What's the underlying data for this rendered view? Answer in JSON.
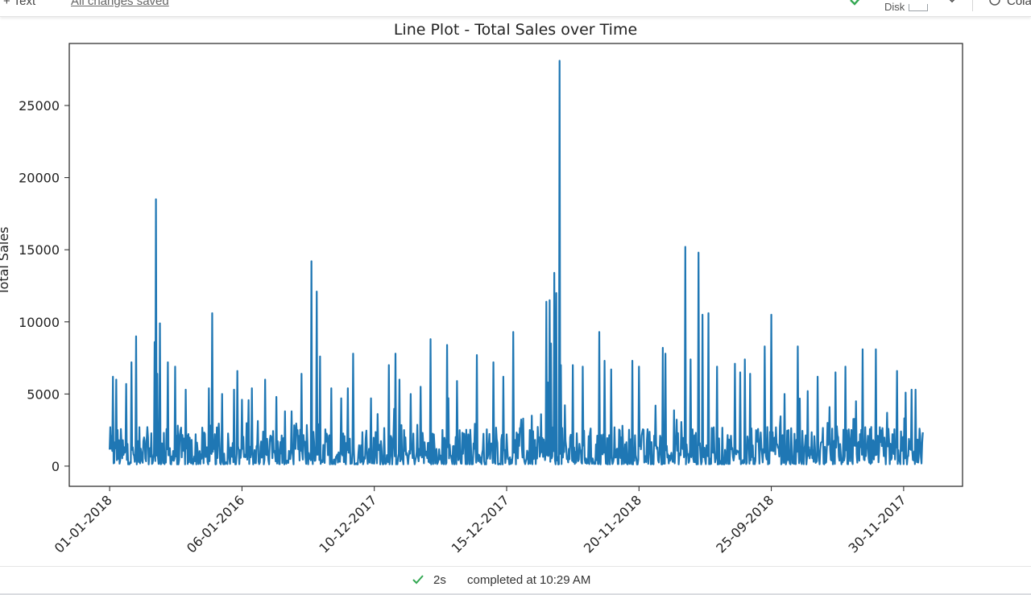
{
  "toolbar": {
    "text_button": "+ Text",
    "save_status": "All changes saved",
    "disk_label": "Disk",
    "colab_label": "Colab"
  },
  "status": {
    "duration": "2s",
    "message": "completed at 10:29 AM"
  },
  "colors": {
    "line": "#1f77b4",
    "check": "#34a853"
  },
  "icons": [
    "check-icon",
    "chevron-down-icon",
    "colab-icon",
    "status-check-icon"
  ],
  "chart_data": {
    "type": "line",
    "title": "Line Plot - Total Sales over Time",
    "xlabel": "",
    "ylabel": "Total Sales",
    "ylim": [
      -1400,
      29300
    ],
    "yticks": [
      0,
      5000,
      10000,
      15000,
      20000,
      25000
    ],
    "x_tick_labels": [
      "01-01-2018",
      "06-01-2016",
      "10-12-2017",
      "15-12-2017",
      "20-11-2018",
      "25-09-2018",
      "30-11-2017"
    ],
    "x_tick_positions": [
      0,
      200,
      400,
      600,
      800,
      1000,
      1200
    ],
    "x_range": [
      -61,
      1289
    ],
    "grid": false,
    "legend": "none",
    "n_points": 1230,
    "peaks": [
      [
        5,
        6200
      ],
      [
        10,
        6000
      ],
      [
        25,
        5700
      ],
      [
        33,
        7200
      ],
      [
        40,
        9000
      ],
      [
        68,
        8600
      ],
      [
        70,
        18500
      ],
      [
        72,
        6400
      ],
      [
        76,
        9900
      ],
      [
        88,
        7200
      ],
      [
        99,
        6900
      ],
      [
        115,
        5300
      ],
      [
        150,
        5400
      ],
      [
        155,
        10600
      ],
      [
        170,
        5000
      ],
      [
        188,
        5300
      ],
      [
        193,
        6600
      ],
      [
        200,
        4600
      ],
      [
        215,
        5400
      ],
      [
        235,
        6000
      ],
      [
        252,
        4800
      ],
      [
        265,
        3800
      ],
      [
        275,
        3800
      ],
      [
        290,
        6400
      ],
      [
        305,
        14200
      ],
      [
        313,
        12100
      ],
      [
        318,
        7600
      ],
      [
        335,
        5400
      ],
      [
        350,
        4700
      ],
      [
        360,
        5400
      ],
      [
        368,
        7800
      ],
      [
        395,
        4700
      ],
      [
        422,
        7000
      ],
      [
        432,
        7800
      ],
      [
        438,
        6000
      ],
      [
        455,
        5000
      ],
      [
        470,
        5500
      ],
      [
        485,
        8800
      ],
      [
        510,
        8400
      ],
      [
        525,
        5900
      ],
      [
        555,
        7700
      ],
      [
        580,
        7200
      ],
      [
        595,
        6200
      ],
      [
        610,
        9300
      ],
      [
        625,
        3300
      ],
      [
        638,
        3500
      ],
      [
        652,
        3600
      ],
      [
        660,
        11400
      ],
      [
        662,
        5800
      ],
      [
        665,
        11500
      ],
      [
        667,
        8500
      ],
      [
        672,
        13400
      ],
      [
        675,
        12000
      ],
      [
        680,
        28100
      ],
      [
        682,
        7000
      ],
      [
        700,
        7000
      ],
      [
        715,
        6900
      ],
      [
        740,
        9300
      ],
      [
        748,
        7300
      ],
      [
        758,
        6700
      ],
      [
        775,
        2800
      ],
      [
        790,
        7300
      ],
      [
        800,
        6900
      ],
      [
        825,
        4200
      ],
      [
        836,
        8200
      ],
      [
        840,
        7800
      ],
      [
        870,
        15200
      ],
      [
        878,
        7400
      ],
      [
        890,
        14800
      ],
      [
        896,
        10500
      ],
      [
        905,
        10600
      ],
      [
        918,
        6900
      ],
      [
        945,
        7100
      ],
      [
        953,
        6500
      ],
      [
        960,
        7400
      ],
      [
        968,
        6400
      ],
      [
        990,
        8300
      ],
      [
        1000,
        10500
      ],
      [
        1020,
        5000
      ],
      [
        1040,
        8300
      ],
      [
        1055,
        5200
      ],
      [
        1070,
        6200
      ],
      [
        1085,
        3000
      ],
      [
        1097,
        6500
      ],
      [
        1112,
        6900
      ],
      [
        1128,
        4500
      ],
      [
        1138,
        8100
      ],
      [
        1158,
        8100
      ],
      [
        1175,
        3700
      ],
      [
        1190,
        6600
      ],
      [
        1203,
        5100
      ],
      [
        1212,
        5300
      ],
      [
        1218,
        5300
      ]
    ]
  }
}
